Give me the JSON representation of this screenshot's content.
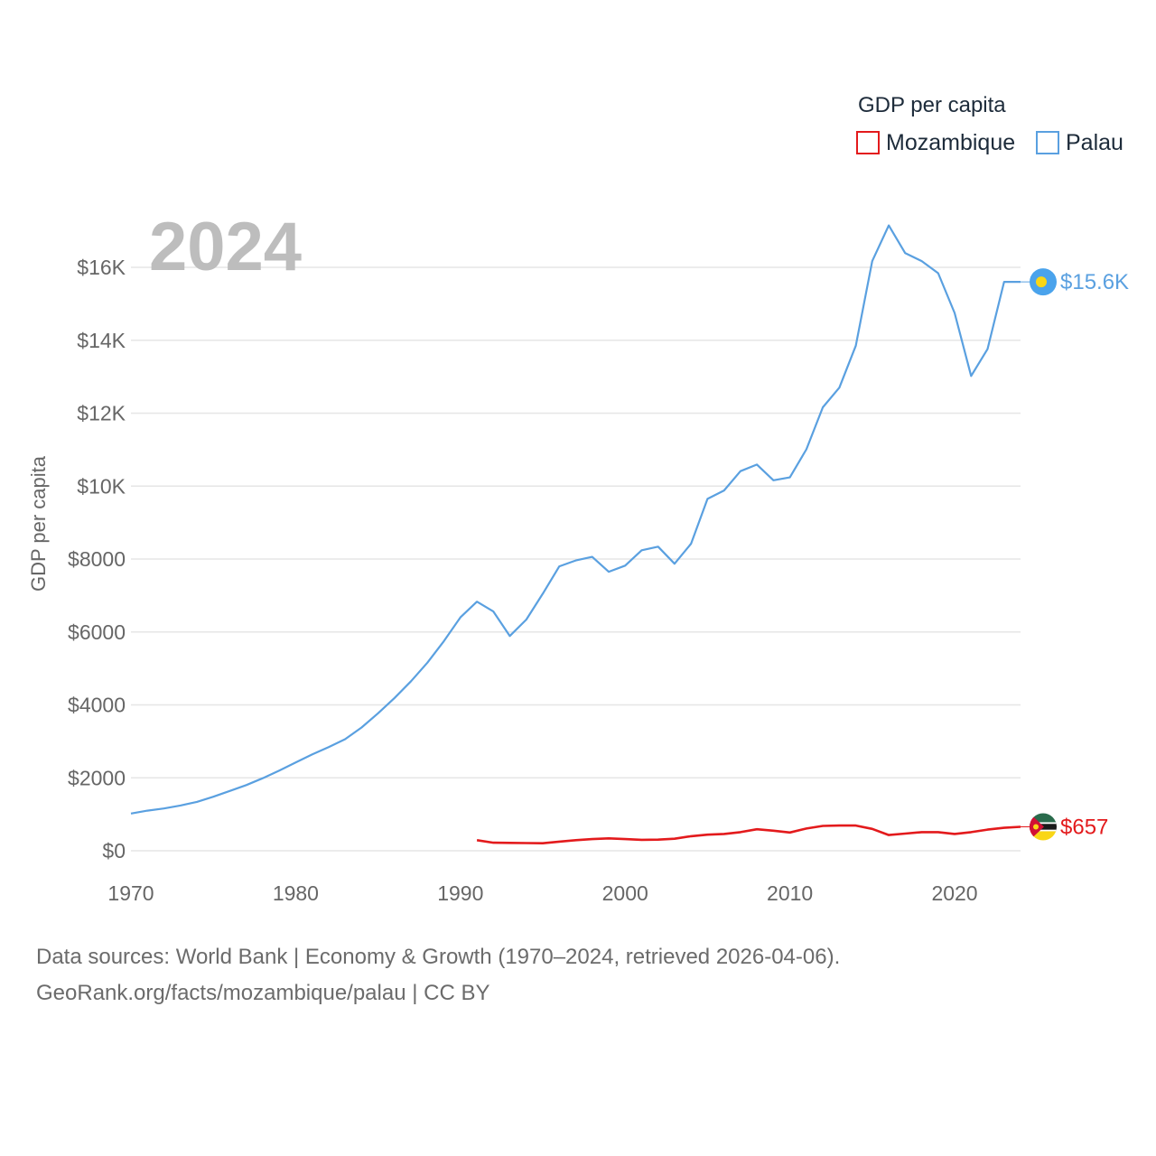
{
  "chart_data": {
    "type": "line",
    "title": "GDP per capita",
    "ylabel": "GDP per capita",
    "xlabel": "",
    "current_year_label": "2024",
    "xlim": [
      1970,
      2024
    ],
    "ylim": [
      0,
      17200
    ],
    "x_ticks": [
      1970,
      1980,
      1990,
      2000,
      2010,
      2020
    ],
    "x_tick_labels": [
      "1970",
      "1980",
      "1990",
      "2000",
      "2010",
      "2020"
    ],
    "y_ticks": [
      0,
      2000,
      4000,
      6000,
      8000,
      10000,
      12000,
      14000,
      16000
    ],
    "y_tick_labels": [
      "$0",
      "$2000",
      "$4000",
      "$6000",
      "$8000",
      "$10K",
      "$12K",
      "$14K",
      "$16K"
    ],
    "legend": {
      "title": "GDP per capita",
      "position": "top-right"
    },
    "series": [
      {
        "name": "Mozambique",
        "color": "#e31a1c",
        "end_label": "$657",
        "flag": "mozambique-flag-icon",
        "x": [
          1991,
          1992,
          1993,
          1994,
          1995,
          1996,
          1997,
          1998,
          1999,
          2000,
          2001,
          2002,
          2003,
          2004,
          2005,
          2006,
          2007,
          2008,
          2009,
          2010,
          2011,
          2012,
          2013,
          2014,
          2015,
          2016,
          2017,
          2018,
          2019,
          2020,
          2021,
          2022,
          2023,
          2024
        ],
        "values": [
          290,
          220,
          215,
          210,
          205,
          250,
          290,
          320,
          340,
          320,
          300,
          305,
          330,
          400,
          440,
          460,
          510,
          590,
          550,
          500,
          610,
          680,
          690,
          690,
          600,
          430,
          470,
          510,
          510,
          460,
          510,
          580,
          630,
          657
        ]
      },
      {
        "name": "Palau",
        "color": "#5aa0e0",
        "end_label": "$15.6K",
        "flag": "palau-flag-icon",
        "x": [
          1970,
          1971,
          1972,
          1973,
          1974,
          1975,
          1976,
          1977,
          1978,
          1979,
          1980,
          1981,
          1982,
          1983,
          1984,
          1985,
          1986,
          1987,
          1988,
          1989,
          1990,
          1991,
          1992,
          1993,
          1994,
          1995,
          1996,
          1997,
          1998,
          1999,
          2000,
          2001,
          2002,
          2003,
          2004,
          2005,
          2006,
          2007,
          2008,
          2009,
          2010,
          2011,
          2012,
          2013,
          2014,
          2015,
          2016,
          2017,
          2018,
          2019,
          2020,
          2021,
          2022,
          2023,
          2024
        ],
        "values": [
          1020,
          1100,
          1160,
          1240,
          1340,
          1480,
          1640,
          1800,
          1990,
          2200,
          2420,
          2640,
          2840,
          3060,
          3380,
          3770,
          4190,
          4650,
          5160,
          5750,
          6400,
          6830,
          6560,
          5890,
          6340,
          7050,
          7800,
          7960,
          8060,
          7650,
          7820,
          8240,
          8340,
          7870,
          8420,
          9650,
          9880,
          10410,
          10590,
          10160,
          10240,
          11010,
          12160,
          12700,
          13850,
          16170,
          17150,
          16390,
          16170,
          15840,
          14750,
          13020,
          13760,
          15600,
          15600
        ]
      }
    ]
  },
  "footer": {
    "line1": "Data sources: World Bank | Economy & Growth (1970–2024, retrieved 2026-04-06).",
    "line2": "GeoRank.org/facts/mozambique/palau | CC BY"
  }
}
